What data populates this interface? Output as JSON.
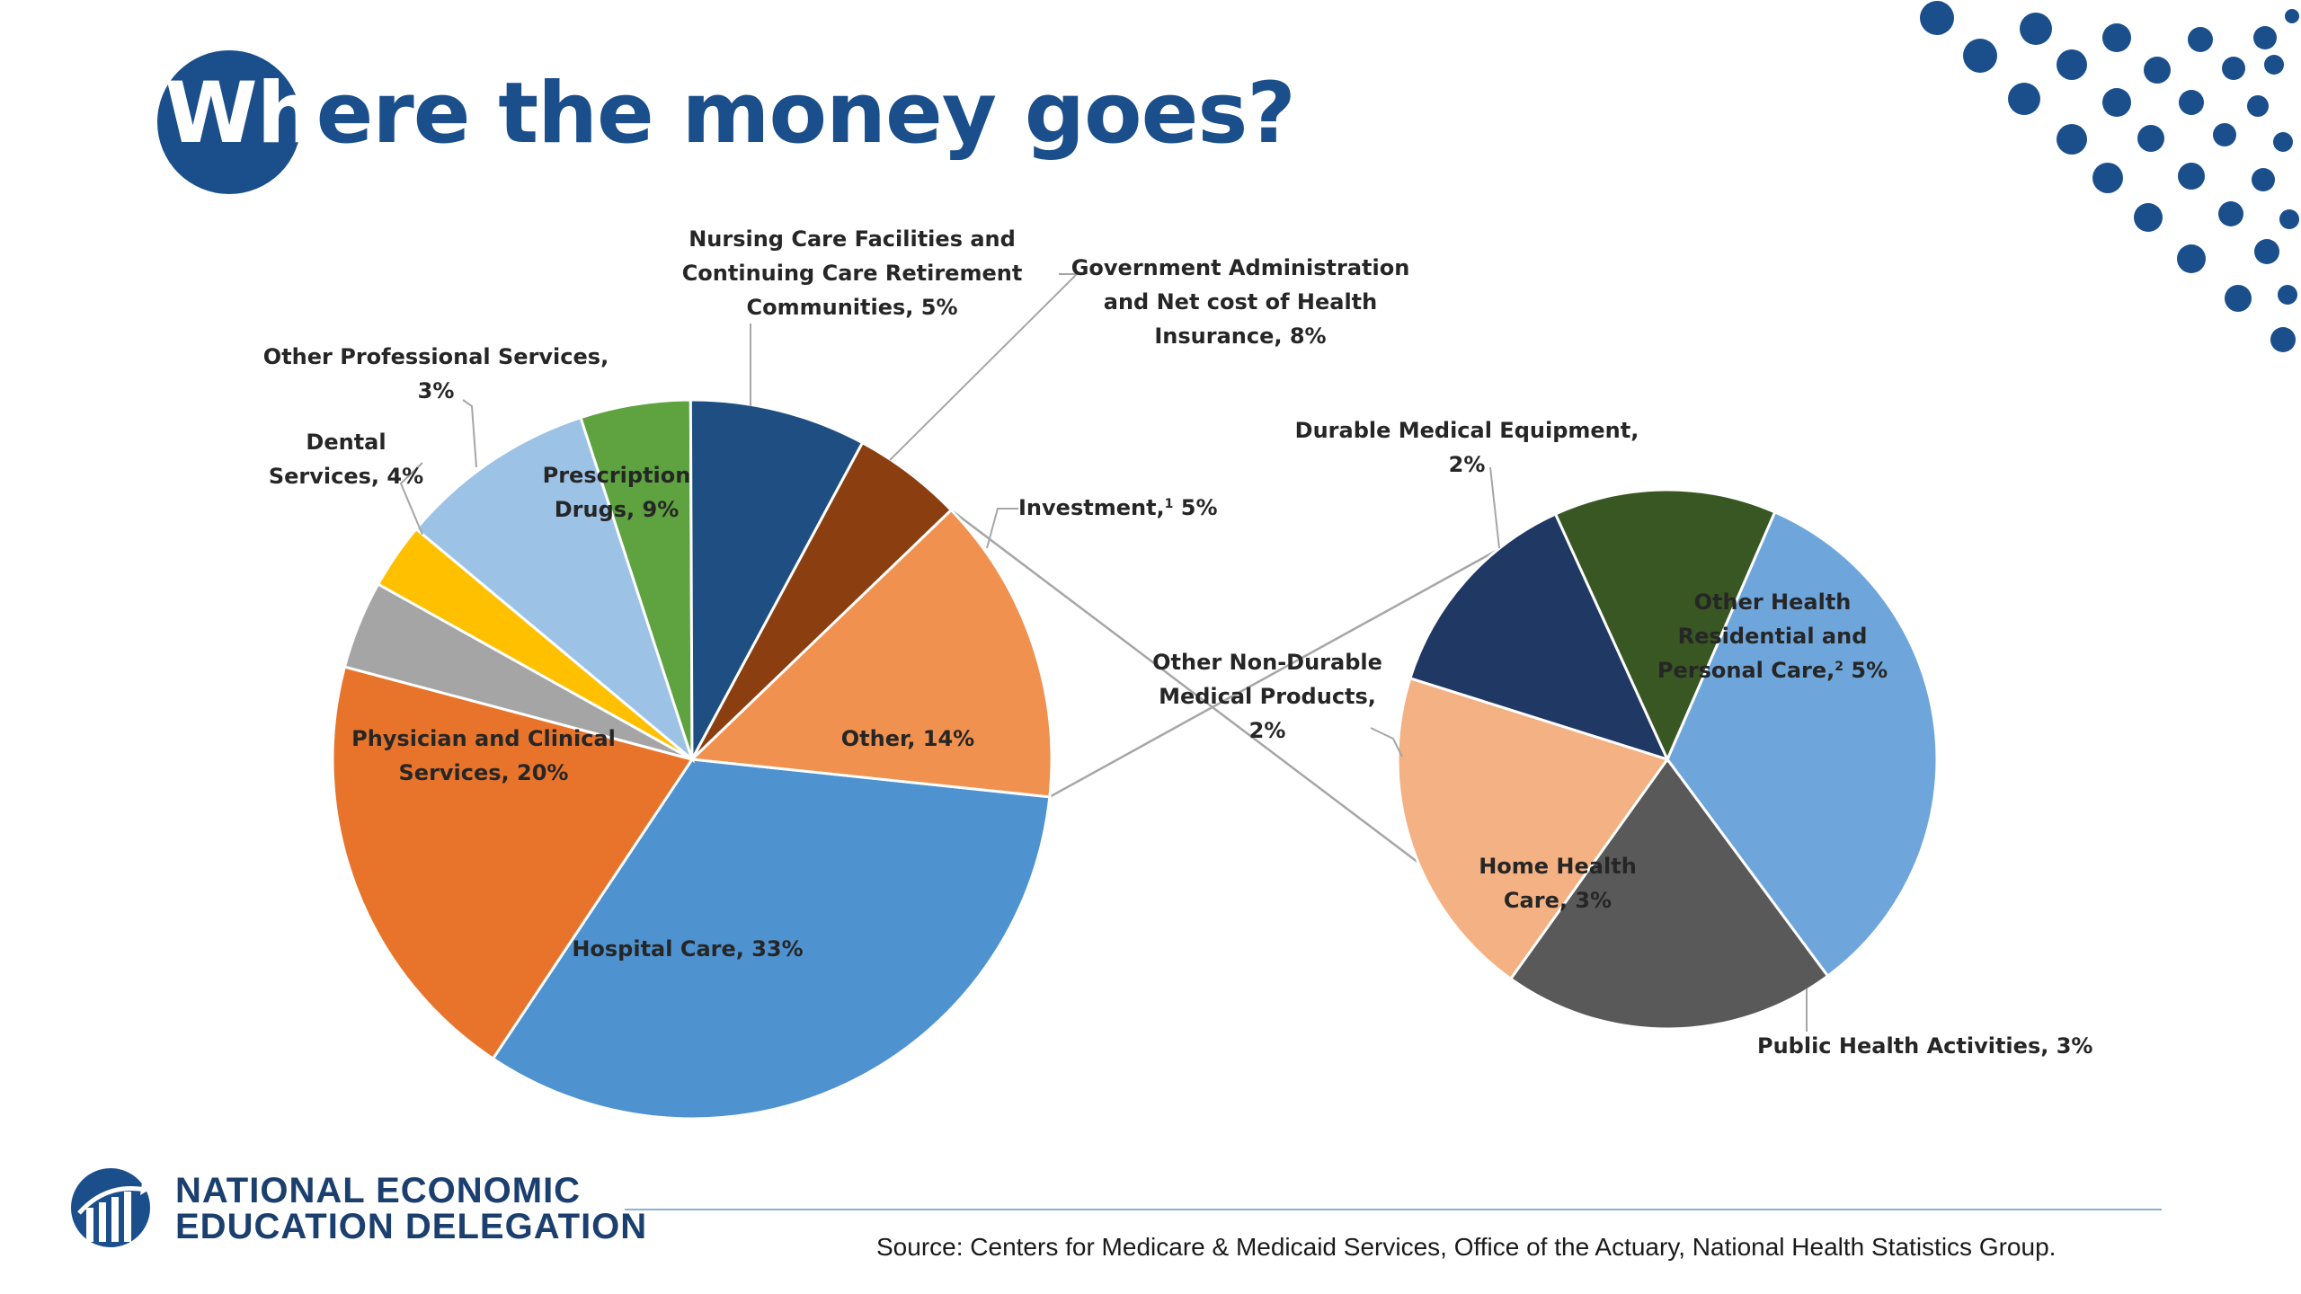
{
  "title": {
    "part1": "Wh",
    "part2": "ere the money goes?"
  },
  "colors": {
    "brand_navy": "#1b4f8c",
    "hospital": "#4f92d0",
    "other": "#f0914f",
    "investment": "#8b3f10",
    "government": "#1f4e82",
    "nursing": "#5fa341",
    "prescription": "#9cc2e6",
    "other_prof": "#ffc000",
    "dental": "#a5a5a5",
    "physician": "#e8742b",
    "other_health_res": "#6ea6db",
    "public_health": "#595959",
    "home_health": "#f4b183",
    "non_durable": "#203864",
    "durable": "#385723"
  },
  "chart_data": [
    {
      "type": "pie",
      "title": "",
      "slices": [
        {
          "label_lines": [
            "Hospital Care, 33%"
          ],
          "value": 33,
          "color_key": "hospital"
        },
        {
          "label_lines": [
            "Physician and Clinical",
            "Services, 20%"
          ],
          "value": 20,
          "color_key": "physician"
        },
        {
          "label_lines": [
            "Dental",
            "Services, 4%"
          ],
          "value": 4,
          "color_key": "dental"
        },
        {
          "label_lines": [
            "Other Professional Services,",
            "3%"
          ],
          "value": 3,
          "color_key": "other_prof"
        },
        {
          "label_lines": [
            "Prescription",
            "Drugs, 9%"
          ],
          "value": 9,
          "color_key": "prescription"
        },
        {
          "label_lines": [
            "Nursing Care Facilities and",
            "Continuing Care Retirement",
            "Communities, 5%"
          ],
          "value": 5,
          "color_key": "nursing"
        },
        {
          "label_lines": [
            "Government Administration",
            "and Net cost of Health",
            "Insurance, 8%"
          ],
          "value": 8,
          "color_key": "government"
        },
        {
          "label_lines": [
            "Investment, 5%"
          ],
          "superscript": "1",
          "value": 5,
          "color_key": "investment"
        },
        {
          "label_lines": [
            "Other, 14%"
          ],
          "value": 14,
          "color_key": "other"
        }
      ]
    },
    {
      "type": "pie",
      "title": "",
      "breakdown_of": "Other, 14%",
      "slices": [
        {
          "label_lines": [
            "Other Health",
            "Residential and",
            "Personal Care, 5%"
          ],
          "superscript": "2",
          "value": 5,
          "color_key": "other_health_res"
        },
        {
          "label_lines": [
            "Public Health Activities, 3%"
          ],
          "value": 3,
          "color_key": "public_health"
        },
        {
          "label_lines": [
            "Home Health",
            "Care, 3%"
          ],
          "value": 3,
          "color_key": "home_health"
        },
        {
          "label_lines": [
            "Other Non-Durable",
            "Medical Products,",
            "2%"
          ],
          "value": 2,
          "color_key": "non_durable"
        },
        {
          "label_lines": [
            "Durable Medical Equipment,",
            "2%"
          ],
          "value": 2,
          "color_key": "durable"
        }
      ]
    }
  ],
  "footer": {
    "org_line1": "NATIONAL ECONOMIC",
    "org_line2": "EDUCATION DELEGATION",
    "source": "Source: Centers for Medicare & Medicaid Services, Office of the Actuary, National Health Statistics Group."
  }
}
